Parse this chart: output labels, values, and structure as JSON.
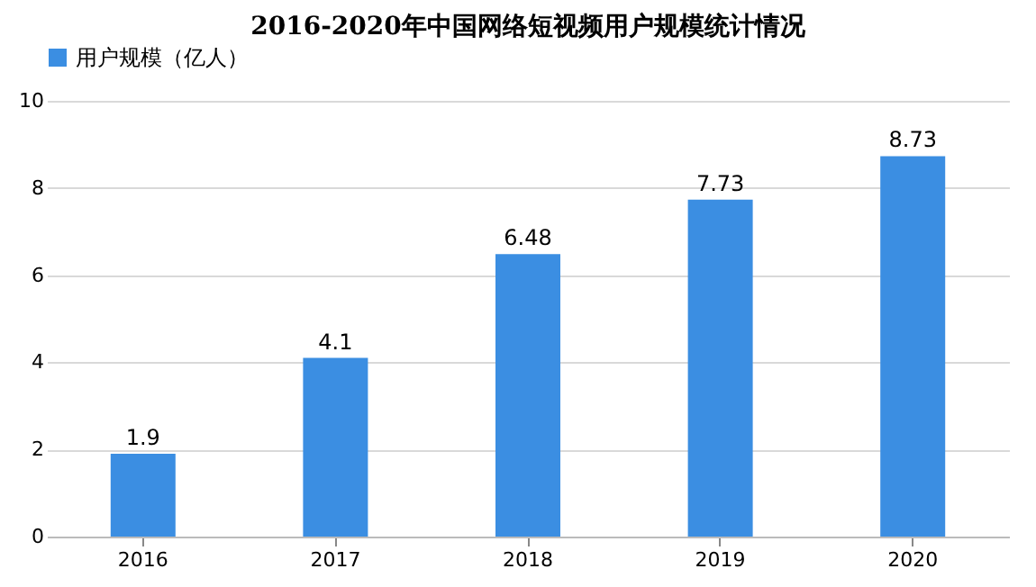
{
  "chart_data": {
    "type": "bar",
    "title": "2016-2020年中国网络短视频用户规模统计情况",
    "categories": [
      "2016",
      "2017",
      "2018",
      "2019",
      "2020"
    ],
    "series": [
      {
        "name": "用户规模（亿人）",
        "color": "#3b8ee2",
        "values": [
          1.9,
          4.1,
          6.48,
          7.73,
          8.73
        ]
      }
    ],
    "ylim": [
      0,
      10
    ],
    "yticks": [
      0,
      2,
      4,
      6,
      8,
      10
    ],
    "grid": "y",
    "legend": "top",
    "data_labels": true
  }
}
